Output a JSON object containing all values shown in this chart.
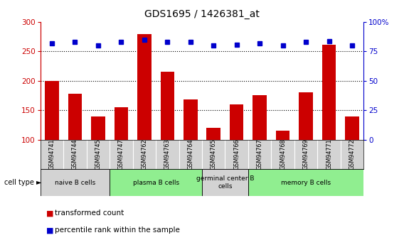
{
  "title": "GDS1695 / 1426381_at",
  "samples": [
    "GSM94741",
    "GSM94744",
    "GSM94745",
    "GSM94747",
    "GSM94762",
    "GSM94763",
    "GSM94764",
    "GSM94765",
    "GSM94766",
    "GSM94767",
    "GSM94768",
    "GSM94769",
    "GSM94771",
    "GSM94772"
  ],
  "bar_values": [
    200,
    178,
    140,
    155,
    280,
    216,
    168,
    120,
    160,
    176,
    115,
    180,
    262,
    140
  ],
  "dot_values": [
    82,
    83,
    80,
    83,
    85,
    83,
    83,
    80,
    81,
    82,
    80,
    83,
    84,
    80
  ],
  "bar_color": "#cc0000",
  "dot_color": "#0000cc",
  "ymin": 100,
  "ymax": 300,
  "yticks": [
    100,
    150,
    200,
    250,
    300
  ],
  "y2min": 0,
  "y2max": 100,
  "y2ticks": [
    0,
    25,
    50,
    75,
    100
  ],
  "y2tick_labels": [
    "0",
    "25",
    "50",
    "75",
    "100%"
  ],
  "cell_groups": [
    {
      "label": "naive B cells",
      "start": 0,
      "end": 3,
      "color": "#d3d3d3"
    },
    {
      "label": "plasma B cells",
      "start": 3,
      "end": 7,
      "color": "#90ee90"
    },
    {
      "label": "germinal center B\ncells",
      "start": 7,
      "end": 9,
      "color": "#d3d3d3"
    },
    {
      "label": "memory B cells",
      "start": 9,
      "end": 14,
      "color": "#90ee90"
    }
  ],
  "legend_items": [
    {
      "color": "#cc0000",
      "label": "transformed count"
    },
    {
      "color": "#0000cc",
      "label": "percentile rank within the sample"
    }
  ],
  "background_color": "#ffffff",
  "plot_bg_color": "#ffffff",
  "sample_box_color": "#d3d3d3"
}
